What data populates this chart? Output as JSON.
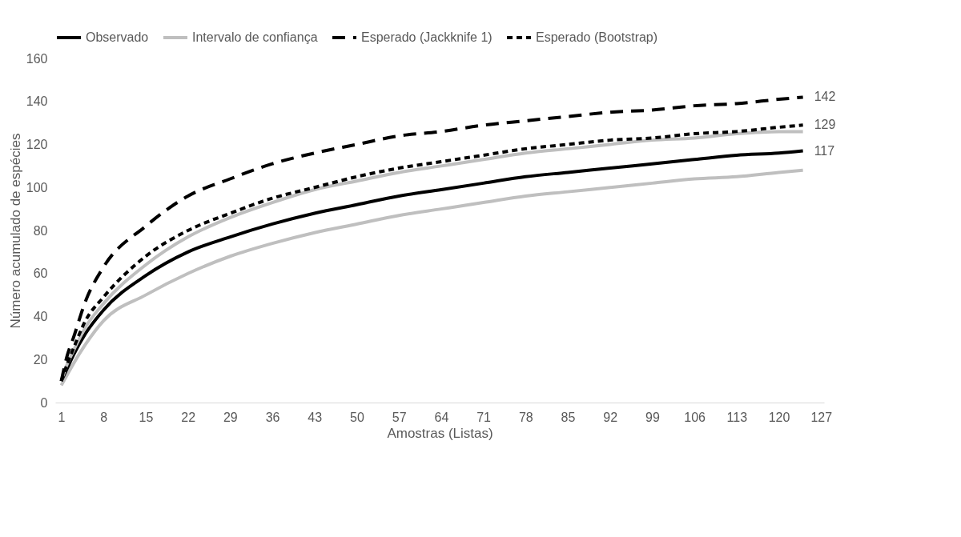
{
  "chart_data": {
    "type": "line",
    "xlabel": "Amostras (Listas)",
    "ylabel": "Número acumulado de espécies",
    "x": [
      1,
      2,
      3,
      5,
      8,
      15,
      22,
      29,
      36,
      43,
      50,
      57,
      64,
      71,
      78,
      85,
      92,
      99,
      106,
      113,
      120,
      124
    ],
    "xlim": [
      0,
      127.5
    ],
    "xticks": [
      1,
      8,
      15,
      22,
      29,
      36,
      43,
      50,
      57,
      64,
      71,
      78,
      85,
      92,
      99,
      106,
      113,
      120,
      127
    ],
    "ylim": [
      0,
      160
    ],
    "yticks": [
      0,
      20,
      40,
      60,
      80,
      100,
      120,
      140,
      160
    ],
    "grid": false,
    "legend": "top",
    "marker": "none",
    "series": [
      {
        "name": "Observado",
        "color": "#000000",
        "line_style": "solid",
        "values": [
          10,
          16,
          22,
          32,
          43,
          59,
          70,
          77,
          83,
          88,
          92,
          96,
          99,
          102,
          105,
          107,
          109,
          111,
          113,
          115,
          116,
          117
        ],
        "value_labels": [
          null,
          null,
          null,
          null,
          null,
          null,
          null,
          null,
          null,
          null,
          null,
          null,
          null,
          null,
          null,
          null,
          null,
          null,
          null,
          null,
          null,
          "117"
        ]
      },
      {
        "name": "Intervalo de confiança",
        "color": "#bfbfbf",
        "line_style": "solid",
        "values": [
          10,
          18,
          24,
          35,
          46,
          64,
          77,
          86,
          93,
          99,
          103,
          107,
          110,
          113,
          116,
          118,
          120,
          122,
          123,
          125,
          126,
          126
        ]
      },
      {
        "name": "Esperado (Jackknife 1)",
        "color": "#000000",
        "line_style": "dashed",
        "values": [
          10,
          22,
          30,
          47,
          63,
          82,
          96,
          104,
          111,
          116,
          120,
          124,
          126,
          129,
          131,
          133,
          135,
          136,
          138,
          139,
          141,
          142
        ],
        "value_labels": [
          null,
          null,
          null,
          null,
          null,
          null,
          null,
          null,
          null,
          null,
          null,
          null,
          null,
          null,
          null,
          null,
          null,
          null,
          null,
          null,
          null,
          "142"
        ]
      },
      {
        "name": "Esperado (Bootstrap)",
        "color": "#000000",
        "line_style": "dotted",
        "values": [
          10,
          18,
          25,
          38,
          49,
          68,
          80,
          88,
          95,
          100,
          105,
          109,
          112,
          115,
          118,
          120,
          122,
          123,
          125,
          126,
          128,
          129
        ],
        "value_labels": [
          null,
          null,
          null,
          null,
          null,
          null,
          null,
          null,
          null,
          null,
          null,
          null,
          null,
          null,
          null,
          null,
          null,
          null,
          null,
          null,
          null,
          "129"
        ]
      },
      {
        "color": "#bfbfbf",
        "line_style": "solid",
        "values": [
          8,
          13,
          18,
          27,
          38,
          50,
          60,
          68,
          74,
          79,
          83,
          87,
          90,
          93,
          96,
          98,
          100,
          102,
          104,
          105,
          107,
          108
        ]
      }
    ]
  }
}
